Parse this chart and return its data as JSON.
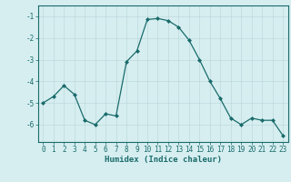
{
  "x": [
    0,
    1,
    2,
    3,
    4,
    5,
    6,
    7,
    8,
    9,
    10,
    11,
    12,
    13,
    14,
    15,
    16,
    17,
    18,
    19,
    20,
    21,
    22,
    23
  ],
  "y": [
    -5.0,
    -4.7,
    -4.2,
    -4.6,
    -5.8,
    -6.0,
    -5.5,
    -5.6,
    -3.1,
    -2.6,
    -1.15,
    -1.1,
    -1.2,
    -1.5,
    -2.1,
    -3.0,
    -4.0,
    -4.8,
    -5.7,
    -6.0,
    -5.7,
    -5.8,
    -5.8,
    -6.5
  ],
  "line_color": "#1a6b6b",
  "marker": "D",
  "marker_size": 2.0,
  "bg_color": "#d6eef0",
  "grid_color": "#b8d4d8",
  "xlabel": "Humidex (Indice chaleur)",
  "xlim": [
    -0.5,
    23.5
  ],
  "ylim": [
    -6.8,
    -0.5
  ],
  "yticks": [
    -6,
    -5,
    -4,
    -3,
    -2,
    -1
  ],
  "xticks": [
    0,
    1,
    2,
    3,
    4,
    5,
    6,
    7,
    8,
    9,
    10,
    11,
    12,
    13,
    14,
    15,
    16,
    17,
    18,
    19,
    20,
    21,
    22,
    23
  ],
  "tick_color": "#1a6b6b",
  "xlabel_fontsize": 6.5,
  "tick_fontsize": 5.5,
  "linewidth": 0.9
}
